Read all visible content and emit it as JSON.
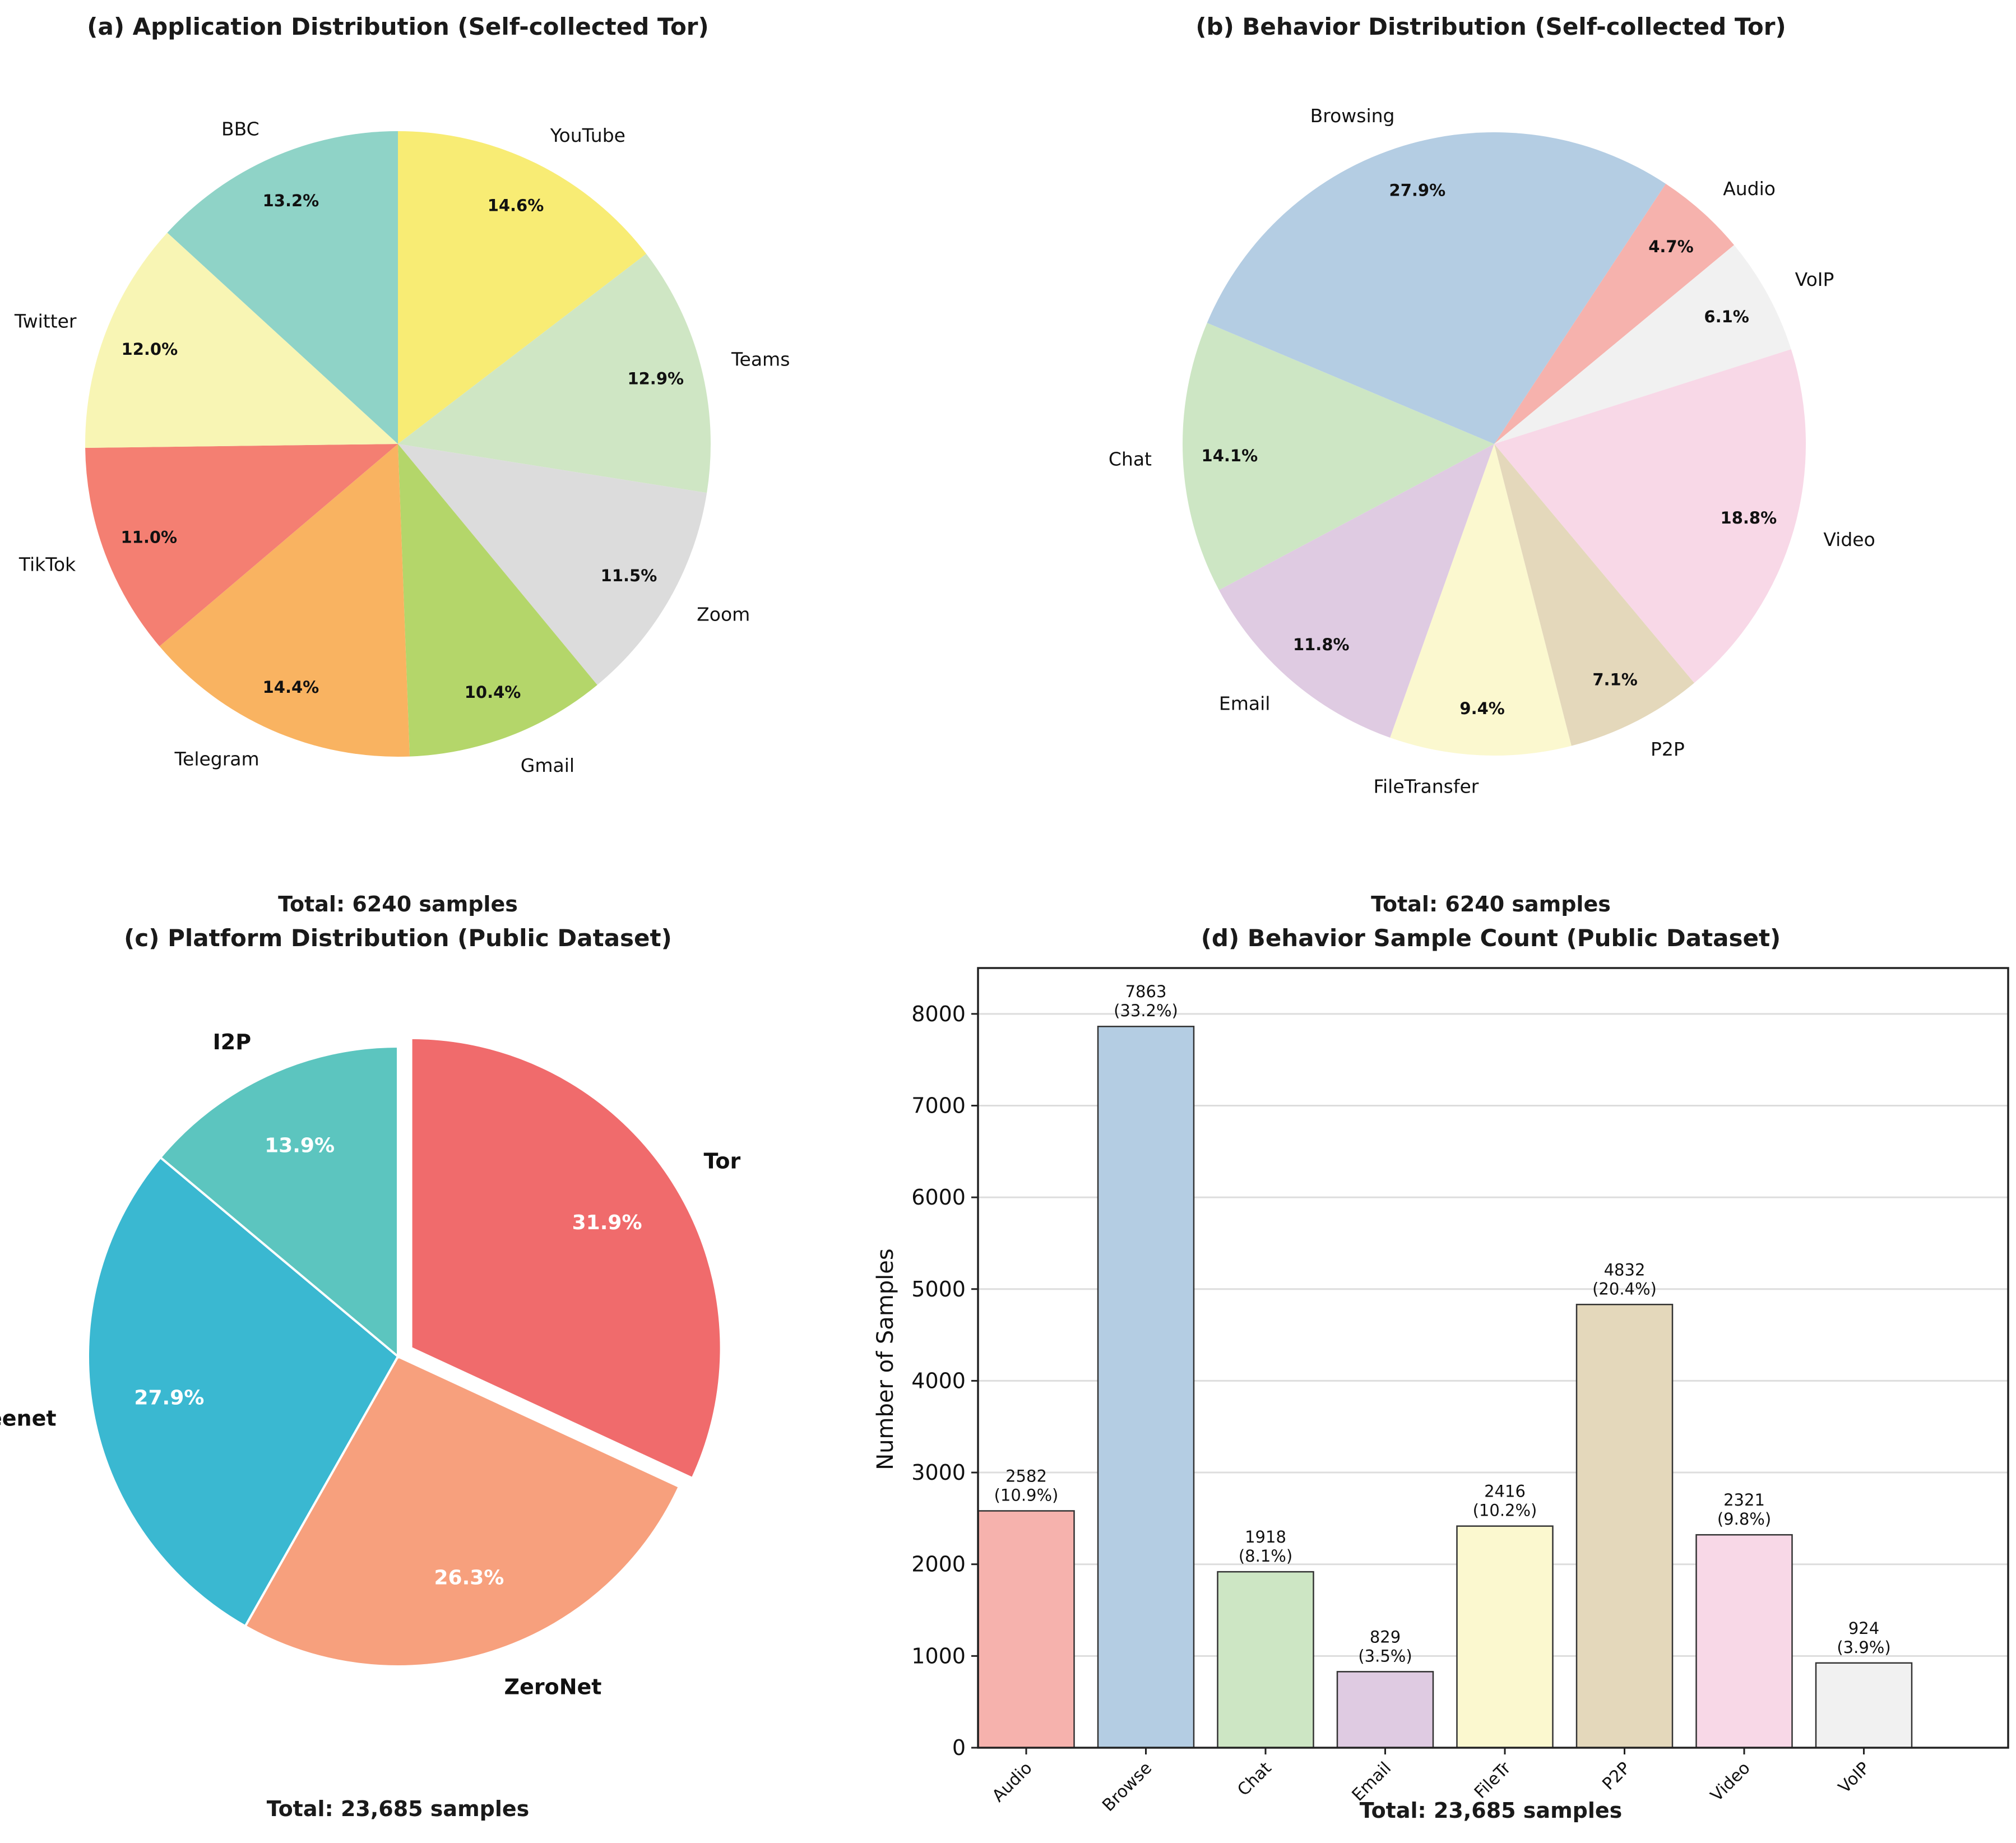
{
  "chart_data": [
    {
      "type": "pie",
      "title": "(a) Application Distribution (Self-collected Tor)",
      "footer": "Total: 6240 samples",
      "labels": [
        "YouTube",
        "Teams",
        "Zoom",
        "Gmail",
        "Telegram",
        "TikTok",
        "Twitter",
        "BBC"
      ],
      "values": [
        14.6,
        12.9,
        11.5,
        10.4,
        14.4,
        11.0,
        12.0,
        13.2
      ],
      "value_labels": [
        "14.6%",
        "12.9%",
        "11.5%",
        "10.4%",
        "14.4%",
        "11.0%",
        "12.0%",
        "13.2%"
      ],
      "colors": [
        "#f8ec74",
        "#cfe6c4",
        "#dcdcdc",
        "#b4d66a",
        "#f9b361",
        "#f47f72",
        "#f8f5b4",
        "#8fd3c7"
      ]
    },
    {
      "type": "pie",
      "title": "(b) Behavior Distribution (Self-collected Tor)",
      "footer": "Total: 6240 samples",
      "labels": [
        "Audio",
        "VoIP",
        "Video",
        "P2P",
        "FileTransfer",
        "Email",
        "Chat",
        "Browsing"
      ],
      "values": [
        4.7,
        6.1,
        18.8,
        7.1,
        9.4,
        11.8,
        14.1,
        27.9
      ],
      "value_labels": [
        "4.7%",
        "6.1%",
        "18.8%",
        "7.1%",
        "9.4%",
        "11.8%",
        "14.1%",
        "27.9%"
      ],
      "colors": [
        "#f6b2ad",
        "#f1f1f1",
        "#f8d8e7",
        "#e4d8bb",
        "#fbf8cf",
        "#dfcbe2",
        "#cde6c4",
        "#b4cde3"
      ]
    },
    {
      "type": "pie",
      "title": "(c) Platform Distribution (Public Dataset)",
      "footer": "Total: 23,685 samples",
      "labels": [
        "Tor",
        "ZeroNet",
        "Freenet",
        "I2P"
      ],
      "values": [
        31.9,
        26.3,
        27.9,
        13.9
      ],
      "value_labels": [
        "31.9%",
        "26.3%",
        "27.9%",
        "13.9%"
      ],
      "colors": [
        "#f06b6c",
        "#f7a07d",
        "#3ab8d1",
        "#5cc5bf"
      ],
      "explode": [
        "Tor"
      ]
    },
    {
      "type": "bar",
      "title": "(d) Behavior Sample Count (Public Dataset)",
      "xlabel": "Total: 23,685 samples",
      "ylabel": "Number of Samples",
      "categories": [
        "Audio",
        "Browse",
        "Chat",
        "Email",
        "FileTr",
        "P2P",
        "Video",
        "VoIP"
      ],
      "values": [
        2582,
        7863,
        1918,
        829,
        2416,
        4832,
        2321,
        924
      ],
      "percent_labels": [
        "(10.9%)",
        "(33.2%)",
        "(8.1%)",
        "(3.5%)",
        "(10.2%)",
        "(20.4%)",
        "(9.8%)",
        "(3.9%)"
      ],
      "colors": [
        "#f6b2ad",
        "#b4cde3",
        "#cde6c4",
        "#dfcbe2",
        "#fbf8cf",
        "#e4d8bb",
        "#f8d8e7",
        "#f1f1f1"
      ],
      "ylim": [
        0,
        8500
      ],
      "yticks": [
        "0",
        "1000",
        "2000",
        "3000",
        "4000",
        "5000",
        "6000",
        "7000",
        "8000"
      ],
      "grid": "y"
    }
  ]
}
